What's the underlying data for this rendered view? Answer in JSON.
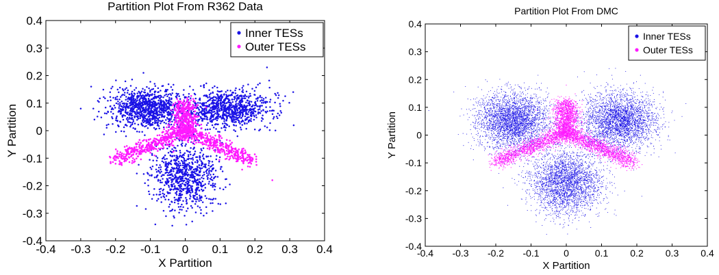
{
  "colors": {
    "inner": "#1a12e6",
    "outer": "#ff19ff",
    "axis": "#000000"
  },
  "chart_data": [
    {
      "type": "scatter",
      "title": "Partition Plot From R362 Data",
      "xlabel": "X Partition",
      "ylabel": "Y Partition",
      "xlim": [
        -0.4,
        0.4
      ],
      "ylim": [
        -0.4,
        0.4
      ],
      "xticks": [
        "-0.4",
        "-0.3",
        "-0.2",
        "-0.1",
        "0",
        "0.1",
        "0.2",
        "0.3",
        "0.4"
      ],
      "yticks": [
        "0.4",
        "0.3",
        "0.2",
        "0.1",
        "0",
        "-0.1",
        "-0.2",
        "-0.3",
        "-0.4"
      ],
      "grid": false,
      "legend": "top-right",
      "series": [
        {
          "name": "Inner TESs",
          "color": "#1a12e6",
          "points": [
            [
              -0.2,
              0.12
            ],
            [
              -0.15,
              0.1
            ],
            [
              -0.1,
              0.09
            ],
            [
              -0.05,
              0.08
            ],
            [
              0.05,
              0.1
            ],
            [
              0.1,
              0.11
            ],
            [
              0.15,
              0.12
            ],
            [
              0.2,
              0.13
            ],
            [
              0.22,
              0.12
            ],
            [
              -0.18,
              0.05
            ],
            [
              -0.12,
              0.03
            ],
            [
              0.12,
              0.02
            ],
            [
              0.18,
              0.06
            ],
            [
              0.0,
              -0.15
            ],
            [
              0.0,
              -0.2
            ],
            [
              -0.02,
              -0.25
            ],
            [
              0.02,
              -0.28
            ],
            [
              -0.05,
              -0.12
            ],
            [
              0.05,
              -0.12
            ],
            [
              -0.3,
              0.08
            ],
            [
              0.31,
              0.14
            ],
            [
              -0.27,
              0.16
            ],
            [
              -0.12,
              0.21
            ],
            [
              0.02,
              -0.33
            ],
            [
              -0.17,
              -0.02
            ],
            [
              0.15,
              -0.02
            ]
          ]
        },
        {
          "name": "Outer TESs",
          "color": "#ff19ff",
          "points": [
            [
              0.0,
              0.1
            ],
            [
              0.0,
              0.05
            ],
            [
              -0.01,
              0.0
            ],
            [
              0.01,
              -0.02
            ],
            [
              -0.05,
              -0.05
            ],
            [
              -0.1,
              -0.08
            ],
            [
              -0.15,
              -0.1
            ],
            [
              -0.2,
              -0.12
            ],
            [
              0.05,
              -0.05
            ],
            [
              0.1,
              -0.08
            ],
            [
              0.15,
              -0.1
            ],
            [
              0.18,
              -0.13
            ],
            [
              0.25,
              -0.18
            ]
          ]
        }
      ]
    },
    {
      "type": "scatter",
      "title": "Partition Plot From DMC",
      "xlabel": "X Partition",
      "ylabel": "Y Partition",
      "xlim": [
        -0.4,
        0.4
      ],
      "ylim": [
        -0.4,
        0.4
      ],
      "xticks": [
        "-0.4",
        "-0.3",
        "-0.2",
        "-0.1",
        "0",
        "0.1",
        "0.2",
        "0.3",
        "0.4"
      ],
      "yticks": [
        "0.4",
        "0.3",
        "0.2",
        "0.1",
        "0",
        "-0.1",
        "-0.2",
        "-0.3",
        "-0.4"
      ],
      "grid": false,
      "legend": "top-right",
      "series": [
        {
          "name": "Inner TESs",
          "color": "#1a12e6",
          "points": [
            [
              -0.25,
              0.12
            ],
            [
              -0.18,
              0.08
            ],
            [
              -0.15,
              0.06
            ],
            [
              -0.1,
              0.1
            ],
            [
              0.1,
              0.1
            ],
            [
              0.15,
              0.07
            ],
            [
              0.18,
              0.08
            ],
            [
              0.25,
              0.12
            ],
            [
              0.0,
              -0.18
            ],
            [
              0.0,
              -0.22
            ],
            [
              -0.05,
              -0.15
            ],
            [
              0.05,
              -0.15
            ],
            [
              0.0,
              -0.28
            ],
            [
              -0.2,
              0.0
            ],
            [
              0.2,
              0.0
            ]
          ]
        },
        {
          "name": "Outer TESs",
          "color": "#ff19ff",
          "points": [
            [
              0.0,
              0.18
            ],
            [
              0.0,
              0.1
            ],
            [
              0.0,
              0.0
            ],
            [
              -0.05,
              -0.03
            ],
            [
              -0.1,
              -0.06
            ],
            [
              -0.15,
              -0.08
            ],
            [
              -0.2,
              -0.1
            ],
            [
              0.05,
              -0.03
            ],
            [
              0.1,
              -0.06
            ],
            [
              0.15,
              -0.08
            ],
            [
              0.2,
              -0.1
            ]
          ]
        }
      ]
    }
  ]
}
